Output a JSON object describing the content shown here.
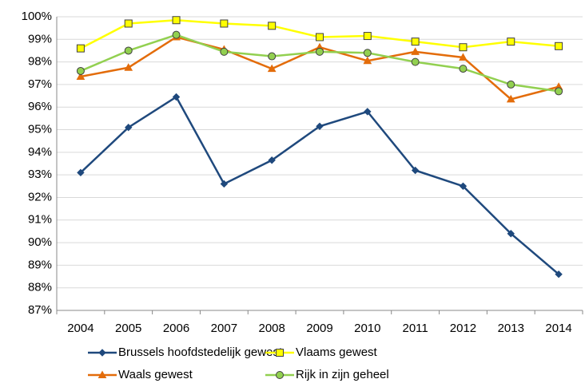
{
  "chart_data": {
    "type": "line",
    "categories": [
      "2004",
      "2005",
      "2006",
      "2007",
      "2008",
      "2009",
      "2010",
      "2011",
      "2012",
      "2013",
      "2014"
    ],
    "series": [
      {
        "name": "Brussels hoofdstedelijk gewest",
        "color": "#1f497d",
        "marker": "diamond",
        "values": [
          93.1,
          95.1,
          96.45,
          92.6,
          93.65,
          95.15,
          95.8,
          93.2,
          92.5,
          90.4,
          88.6
        ]
      },
      {
        "name": "Vlaams gewest",
        "color": "#ffff00",
        "marker": "square",
        "values": [
          98.6,
          99.7,
          99.85,
          99.7,
          99.6,
          99.1,
          99.15,
          98.9,
          98.65,
          98.9,
          98.7
        ]
      },
      {
        "name": "Waals gewest",
        "color": "#e36c0a",
        "marker": "triangle",
        "values": [
          97.35,
          97.75,
          99.1,
          98.55,
          97.7,
          98.65,
          98.05,
          98.45,
          98.2,
          96.35,
          96.9
        ]
      },
      {
        "name": "Rijk in zijn geheel",
        "color": "#92d050",
        "marker": "circle",
        "values": [
          97.6,
          98.5,
          99.2,
          98.45,
          98.25,
          98.45,
          98.4,
          98.0,
          97.7,
          97.0,
          96.7
        ]
      }
    ],
    "ylim": [
      87,
      100
    ],
    "yticks": [
      {
        "value": 87,
        "label": "87%"
      },
      {
        "value": 88,
        "label": "88%"
      },
      {
        "value": 89,
        "label": "89%"
      },
      {
        "value": 90,
        "label": "90%"
      },
      {
        "value": 91,
        "label": "91%"
      },
      {
        "value": 92,
        "label": "92%"
      },
      {
        "value": 93,
        "label": "93%"
      },
      {
        "value": 94,
        "label": "94%"
      },
      {
        "value": 95,
        "label": "95%"
      },
      {
        "value": 96,
        "label": "96%"
      },
      {
        "value": 97,
        "label": "97%"
      },
      {
        "value": 98,
        "label": "98%"
      },
      {
        "value": 99,
        "label": "99%"
      },
      {
        "value": 100,
        "label": "100%"
      }
    ],
    "grid": true,
    "legend": "bottom"
  }
}
